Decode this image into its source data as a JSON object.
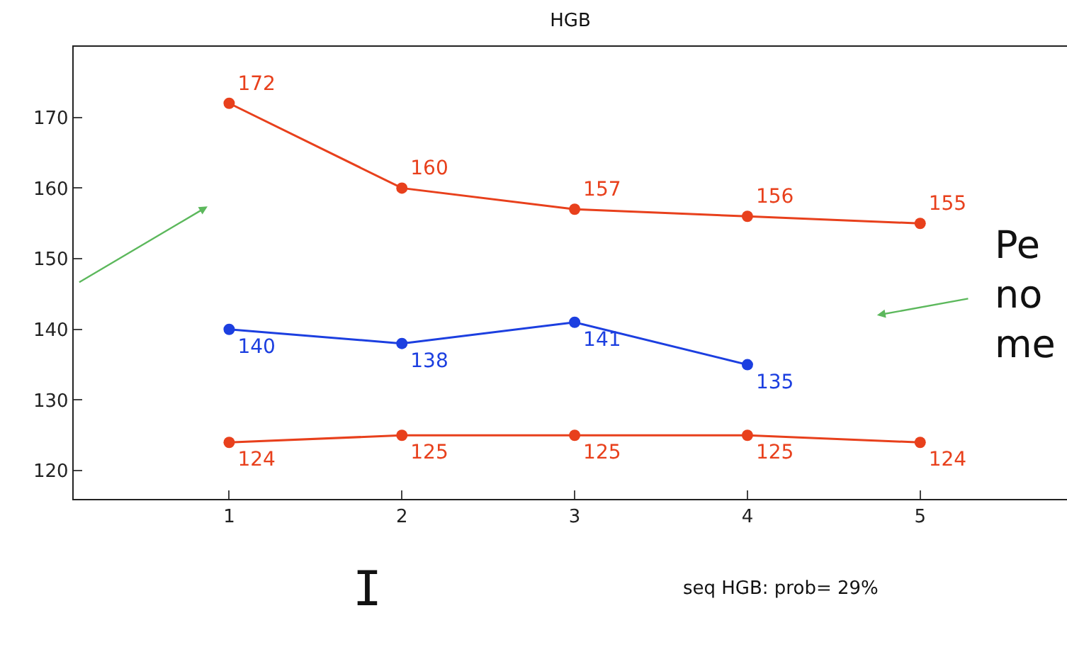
{
  "chart_data": {
    "type": "line",
    "title": "HGB",
    "x": [
      1,
      2,
      3,
      4,
      5
    ],
    "series": [
      {
        "color": "#e8401c",
        "values": [
          172,
          160,
          157,
          156,
          155
        ]
      },
      {
        "color": "#1c3fe0",
        "values": [
          140,
          138,
          141,
          135,
          null
        ]
      },
      {
        "color": "#e8401c",
        "values": [
          124,
          125,
          125,
          125,
          124
        ]
      }
    ],
    "xlim": [
      0.1,
      5.85
    ],
    "xticks": [
      1,
      2,
      3,
      4,
      5
    ],
    "ylim": [
      116,
      180
    ],
    "yticks": [
      120,
      130,
      140,
      150,
      160,
      170
    ],
    "grid": false,
    "marker": "circle",
    "line_style": "solid",
    "data_labels": true,
    "annotations": [
      "I",
      "seq HGB: prob= 29%",
      "Pe\nno\nme"
    ]
  }
}
